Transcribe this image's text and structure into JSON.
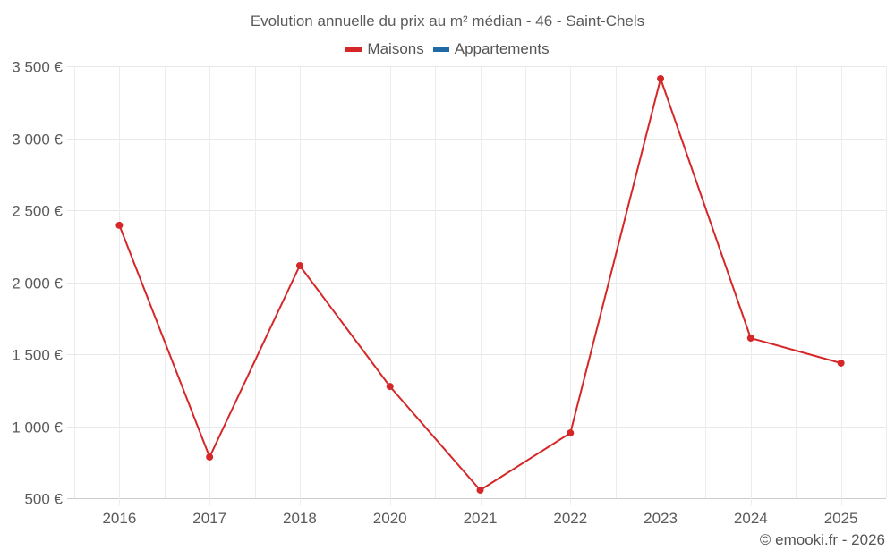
{
  "title": "Evolution annuelle du prix au m² médian - 46 - Saint-Chels",
  "legend": [
    {
      "label": "Maisons",
      "color": "#d62728"
    },
    {
      "label": "Appartements",
      "color": "#1f6aa5"
    }
  ],
  "credit": "© emooki.fr - 2026",
  "colors": {
    "maisons": "#d62728",
    "appartements": "#1f6aa5",
    "grid": "#e8e8e8",
    "axis": "#cccccc"
  },
  "chart_data": {
    "type": "line",
    "title": "Evolution annuelle du prix au m² médian - 46 - Saint-Chels",
    "xlabel": "",
    "ylabel": "",
    "categories": [
      "2016",
      "2017",
      "2018",
      "2020",
      "2021",
      "2022",
      "2023",
      "2024",
      "2025"
    ],
    "series": [
      {
        "name": "Maisons",
        "color": "#d62728",
        "values": [
          2395,
          786,
          2115,
          1276,
          556,
          953,
          3413,
          1612,
          1438
        ]
      },
      {
        "name": "Appartements",
        "color": "#1f6aa5",
        "values": []
      }
    ],
    "ylim": [
      500,
      3500
    ],
    "yticks": [
      500,
      1000,
      1500,
      2000,
      2500,
      3000,
      3500
    ],
    "ytick_labels": [
      "500 €",
      "1 000 €",
      "1 500 €",
      "2 000 €",
      "2 500 €",
      "3 000 €",
      "3 500 €"
    ],
    "grid": true,
    "legend_position": "top"
  }
}
